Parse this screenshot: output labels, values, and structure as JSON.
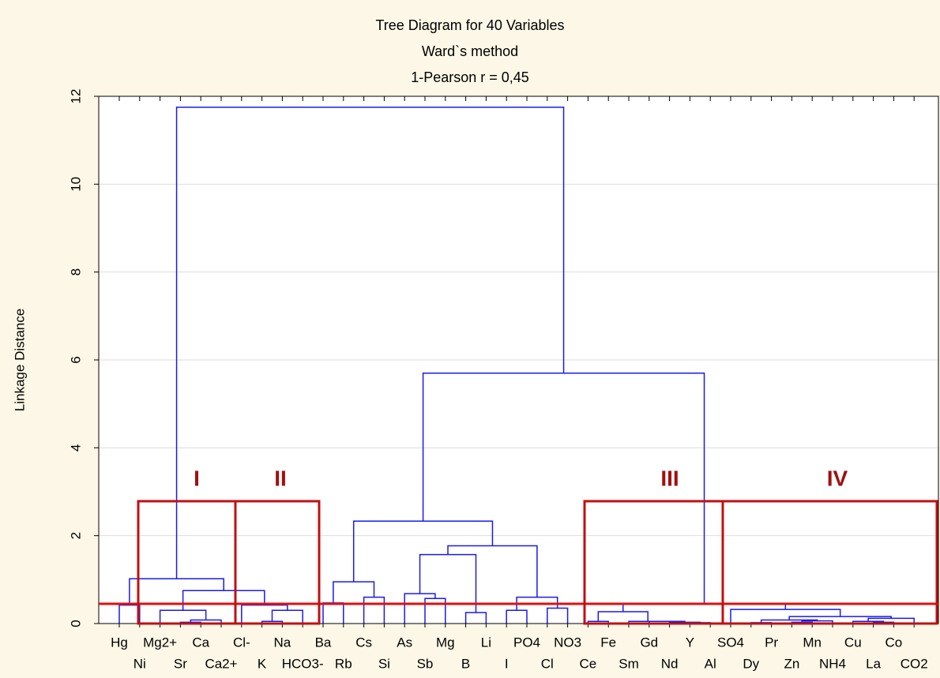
{
  "chart_data": {
    "type": "dendrogram",
    "title": "Tree Diagram for 40  Variables",
    "subtitle": "Ward`s method",
    "metric": "1-Pearson r = 0,45",
    "ylabel": "Linkage Distance",
    "ylim": [
      0,
      12
    ],
    "yticks": [
      0,
      2,
      4,
      6,
      8,
      10,
      12
    ],
    "grid": true,
    "color": "#1a1aee",
    "cut_height": 0.45,
    "cut_color": "#e01010",
    "categories": [
      "Hg",
      "Ni",
      "Mg2+",
      "Sr",
      "Ca",
      "Ca2+",
      "Cl-",
      "K",
      "Na",
      "HCO3-",
      "Ba",
      "Rb",
      "Cs",
      "Si",
      "As",
      "Sb",
      "Mg",
      "B",
      "Li",
      "I",
      "PO4",
      "Cl",
      "NO3",
      "Ce",
      "Fe",
      "Sm",
      "Gd",
      "Nd",
      "Y",
      "Al",
      "SO4",
      "Dy",
      "Pr",
      "Zn",
      "Mn",
      "NH4",
      "Cu",
      "La",
      "Co",
      "CO2"
    ],
    "merges": [
      [
        0,
        1,
        0.42
      ],
      [
        3,
        4,
        0.03
      ],
      [
        41,
        5,
        0.08
      ],
      [
        2,
        42,
        0.3
      ],
      [
        7,
        8,
        0.05
      ],
      [
        44,
        9,
        0.3
      ],
      [
        6,
        45,
        0.42
      ],
      [
        43,
        46,
        0.75
      ],
      [
        40,
        47,
        1.02
      ],
      [
        10,
        11,
        0.47
      ],
      [
        12,
        13,
        0.6
      ],
      [
        49,
        50,
        0.95
      ],
      [
        15,
        16,
        0.57
      ],
      [
        14,
        52,
        0.68
      ],
      [
        17,
        18,
        0.25
      ],
      [
        53,
        54,
        1.57
      ],
      [
        19,
        20,
        0.3
      ],
      [
        21,
        22,
        0.35
      ],
      [
        56,
        57,
        0.6
      ],
      [
        55,
        58,
        1.77
      ],
      [
        51,
        59,
        2.33
      ],
      [
        23,
        24,
        0.05
      ],
      [
        28,
        29,
        0.02
      ],
      [
        27,
        62,
        0.03
      ],
      [
        26,
        63,
        0.05
      ],
      [
        25,
        64,
        0.05
      ],
      [
        61,
        65,
        0.27
      ],
      [
        31,
        32,
        0.02
      ],
      [
        33,
        34,
        0.03
      ],
      [
        68,
        35,
        0.06
      ],
      [
        67,
        69,
        0.08
      ],
      [
        37,
        38,
        0.03
      ],
      [
        36,
        71,
        0.05
      ],
      [
        72,
        39,
        0.12
      ],
      [
        70,
        73,
        0.16
      ],
      [
        30,
        74,
        0.32
      ],
      [
        66,
        75,
        0.45
      ],
      [
        60,
        76,
        5.7
      ],
      [
        48,
        77,
        11.75
      ]
    ],
    "groups": [
      "I",
      "II",
      "III",
      "IV"
    ]
  }
}
